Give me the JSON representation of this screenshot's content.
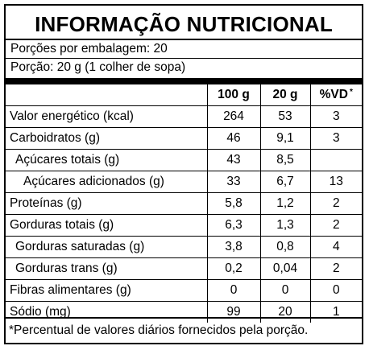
{
  "title": "INFORMAÇÃO NUTRICIONAL",
  "servings_per_package": "Porções por embalagem: 20",
  "serving_size": "Porção: 20 g (1 colher de sopa)",
  "headers": {
    "col1": "100 g",
    "col2": "20 g",
    "col3": "%VD",
    "col3_mark": "*"
  },
  "rows": [
    {
      "name": "Valor energético (kcal)",
      "per100": "264",
      "per20": "53",
      "vd": "3"
    },
    {
      "name": "Carboidratos (g)",
      "per100": "46",
      "per20": "9,1",
      "vd": "3"
    },
    {
      "name": "Açúcares totais (g)",
      "per100": "43",
      "per20": "8,5",
      "vd": ""
    },
    {
      "name": "Açúcares adicionados (g)",
      "per100": "33",
      "per20": "6,7",
      "vd": "13"
    },
    {
      "name": "Proteínas (g)",
      "per100": "5,8",
      "per20": "1,2",
      "vd": "2"
    },
    {
      "name": "Gorduras totais (g)",
      "per100": "6,3",
      "per20": "1,3",
      "vd": "2"
    },
    {
      "name": "Gorduras saturadas (g)",
      "per100": "3,8",
      "per20": "0,8",
      "vd": "4"
    },
    {
      "name": "Gorduras trans (g)",
      "per100": "0,2",
      "per20": "0,04",
      "vd": "2"
    },
    {
      "name": "Fibras alimentares (g)",
      "per100": "0",
      "per20": "0",
      "vd": "0"
    },
    {
      "name": "Sódio (mg)",
      "per100": "99",
      "per20": "20",
      "vd": "1"
    }
  ],
  "footnote": "*Percentual de valores diários fornecidos pela porção."
}
